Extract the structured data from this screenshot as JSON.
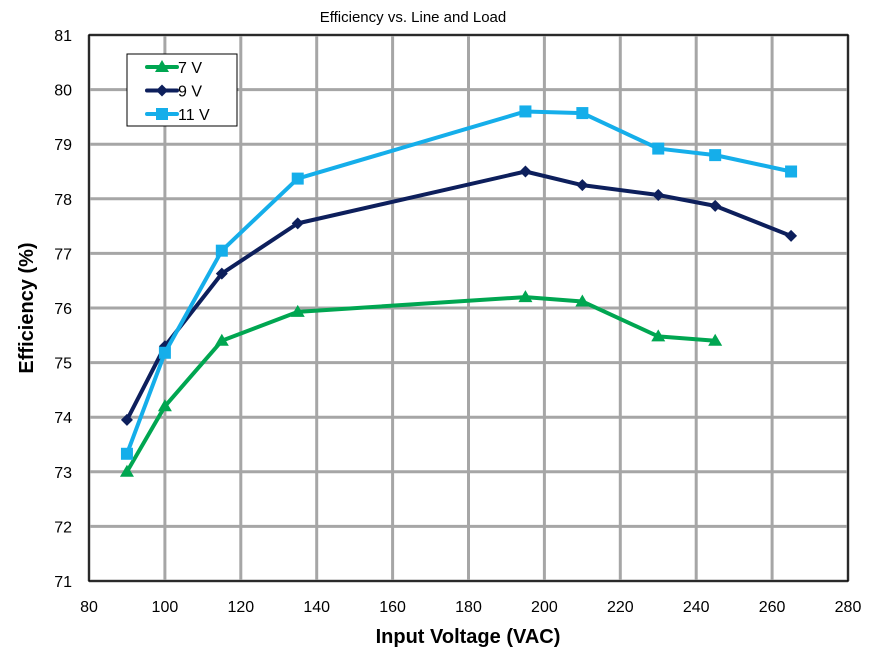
{
  "chart_data": {
    "type": "line",
    "title": "Efficiency vs. Line and Load",
    "xlabel": "Input Voltage (VAC)",
    "ylabel": "Efficiency (%)",
    "xlim": [
      80,
      280
    ],
    "ylim": [
      71,
      81
    ],
    "xticks": [
      80,
      100,
      120,
      140,
      160,
      180,
      200,
      220,
      240,
      260,
      280
    ],
    "yticks": [
      71,
      72,
      73,
      74,
      75,
      76,
      77,
      78,
      79,
      80,
      81
    ],
    "grid": true,
    "legend_position": "top-left",
    "series": [
      {
        "name": "7 V",
        "color": "#00A651",
        "marker": "triangle",
        "x": [
          90,
          100,
          115,
          135,
          195,
          210,
          230,
          245
        ],
        "y": [
          73.0,
          74.2,
          75.4,
          75.93,
          76.2,
          76.12,
          75.48,
          75.4
        ]
      },
      {
        "name": "9 V",
        "color": "#0D1F5C",
        "marker": "diamond",
        "x": [
          90,
          100,
          115,
          135,
          195,
          210,
          230,
          245,
          265
        ],
        "y": [
          73.95,
          75.3,
          76.63,
          77.55,
          78.5,
          78.25,
          78.07,
          77.87,
          77.32
        ]
      },
      {
        "name": "11 V",
        "color": "#15AEEA",
        "marker": "square",
        "x": [
          90,
          100,
          115,
          135,
          195,
          210,
          230,
          245,
          265
        ],
        "y": [
          73.33,
          75.18,
          77.05,
          78.37,
          79.6,
          79.57,
          78.92,
          78.8,
          78.5
        ]
      }
    ]
  }
}
